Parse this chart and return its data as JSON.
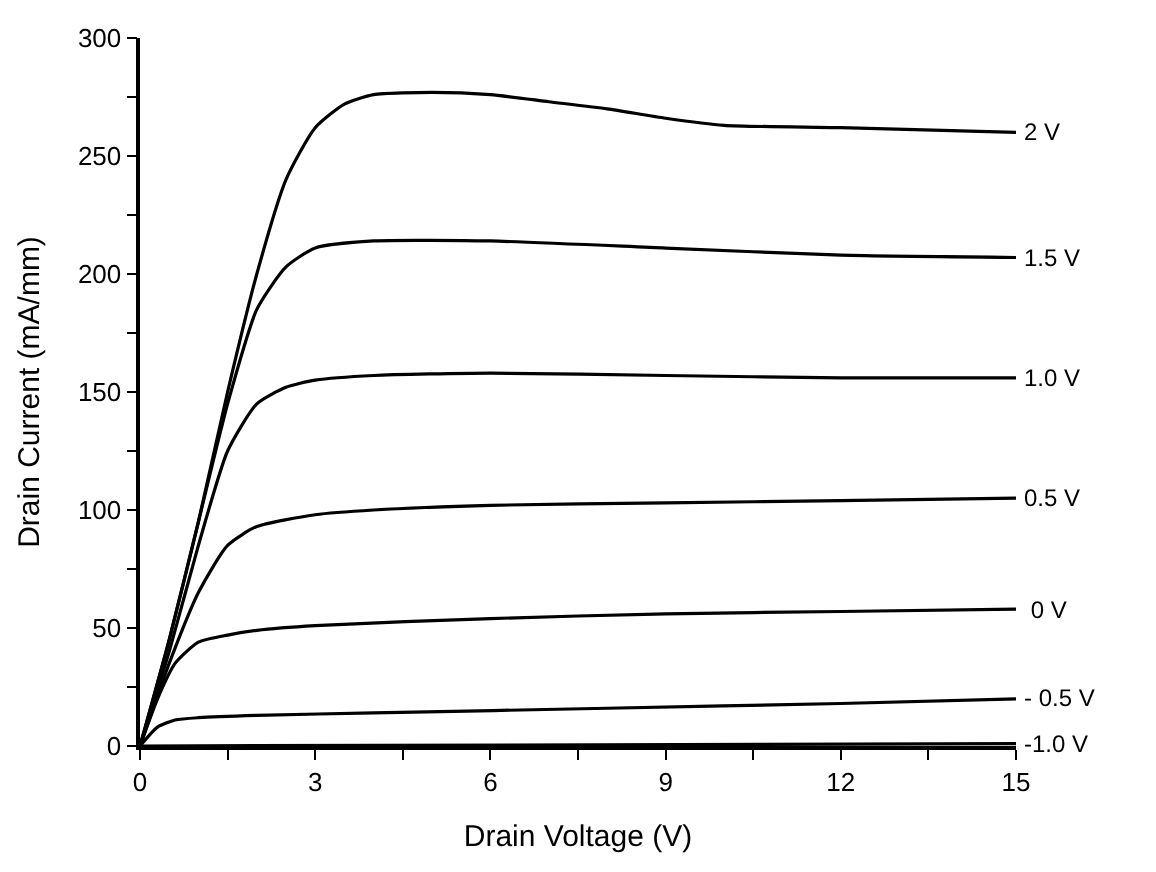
{
  "chart_data": {
    "type": "line",
    "xlabel": "Drain Voltage (V)",
    "ylabel": "Drain Current (mA/mm)",
    "xlim": [
      0,
      15
    ],
    "ylim": [
      0,
      300
    ],
    "xticks": [
      0,
      {
        "value": 1.5,
        "label": null
      },
      3,
      {
        "value": 4.5,
        "label": null
      },
      6,
      {
        "value": 7.5,
        "label": null
      },
      9,
      {
        "value": 10.5,
        "label": null
      },
      12,
      {
        "value": 13.5,
        "label": null
      },
      15
    ],
    "yticks": [
      0,
      {
        "value": 25,
        "label": null
      },
      50,
      {
        "value": 75,
        "label": null
      },
      100,
      {
        "value": 125,
        "label": null
      },
      150,
      {
        "value": 175,
        "label": null
      },
      200,
      {
        "value": 225,
        "label": null
      },
      250,
      {
        "value": 275,
        "label": null
      },
      300
    ],
    "grid": false,
    "legend": false,
    "marker": "none",
    "line_style": "solid",
    "series": [
      {
        "name": "2 V",
        "color": "#000000",
        "x": [
          0,
          0.5,
          1,
          1.5,
          2,
          2.5,
          3,
          3.5,
          4,
          5,
          6,
          7,
          8,
          9,
          10,
          12,
          15
        ],
        "values": [
          0,
          45,
          95,
          150,
          200,
          240,
          262,
          272,
          276,
          277,
          276,
          273,
          270,
          266,
          263,
          262,
          260
        ]
      },
      {
        "name": "1.5 V",
        "color": "#000000",
        "x": [
          0,
          0.5,
          1,
          1.5,
          2,
          2.5,
          3,
          4,
          6,
          9,
          12,
          15
        ],
        "values": [
          0,
          45,
          95,
          145,
          185,
          203,
          211,
          214,
          214,
          211,
          208,
          207
        ]
      },
      {
        "name": "1.0 V",
        "color": "#000000",
        "x": [
          0,
          0.5,
          1,
          1.5,
          2,
          2.5,
          3,
          4,
          6,
          9,
          12,
          15
        ],
        "values": [
          0,
          40,
          85,
          125,
          145,
          152,
          155,
          157,
          158,
          157,
          156,
          156
        ]
      },
      {
        "name": "0.5 V",
        "color": "#000000",
        "x": [
          0,
          0.5,
          1,
          1.5,
          2,
          3,
          4,
          6,
          9,
          12,
          15
        ],
        "values": [
          0,
          35,
          65,
          85,
          93,
          98,
          100,
          102,
          103,
          104,
          105
        ]
      },
      {
        "name": " 0 V",
        "color": "#000000",
        "x": [
          0,
          0.3,
          0.6,
          1,
          1.5,
          2,
          3,
          6,
          9,
          12,
          15
        ],
        "values": [
          0,
          20,
          35,
          44,
          47,
          49,
          51,
          54,
          56,
          57,
          58
        ]
      },
      {
        "name": "- 0.5 V",
        "color": "#000000",
        "x": [
          0,
          0.3,
          0.6,
          1,
          2,
          4,
          8,
          12,
          15
        ],
        "values": [
          0,
          8,
          11,
          12,
          13,
          14,
          16,
          18,
          20
        ]
      },
      {
        "name": "-1.0 V",
        "color": "#000000",
        "x": [
          0,
          15
        ],
        "values": [
          0,
          1
        ]
      }
    ]
  }
}
